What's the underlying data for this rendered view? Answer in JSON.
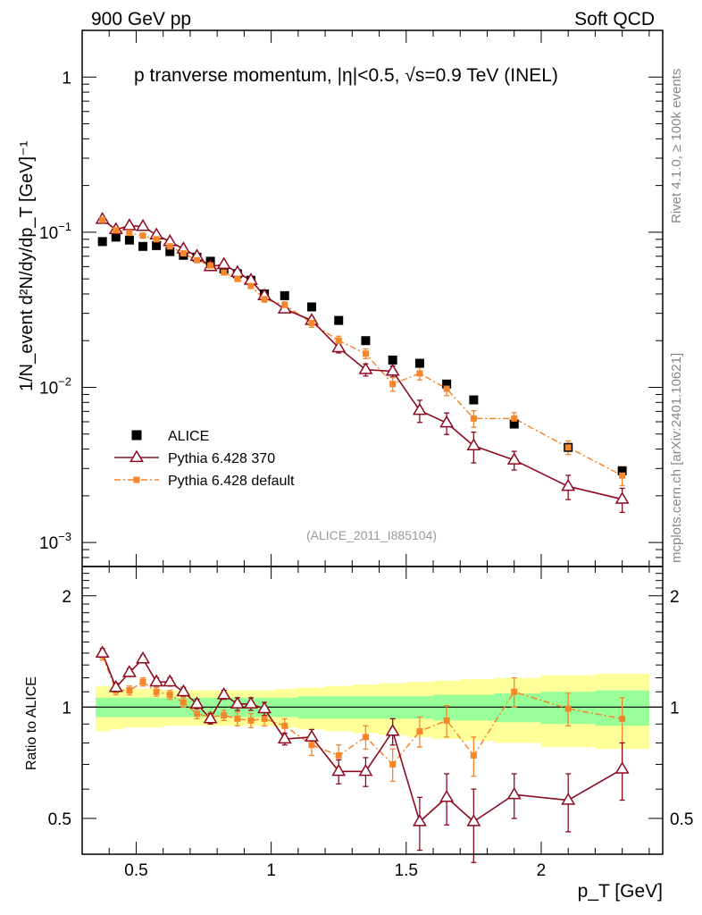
{
  "header": {
    "left": "900 GeV pp",
    "right": "Soft QCD"
  },
  "side": {
    "rivet": "Rivet 4.1.0, ≥ 100k events",
    "mcplots": "mcplots.cern.ch [arXiv:2401.10621]"
  },
  "colors": {
    "alice": "#000000",
    "p370": "#8b0a1f",
    "pdef": "#f5862c",
    "band_inner": "#99ff99",
    "band_outer": "#ffff99"
  },
  "chart_data": {
    "type": "scatter",
    "title": "p tranverse momentum, |η|<0.5, √s=0.9 TeV (INEL)",
    "analysis_label": "(ALICE_2011_I885104)",
    "ylabel_main": "1/N_event d²N/dy/dp_T [GeV]⁻¹",
    "ylabel_ratio": "Ratio to ALICE",
    "xlabel": "p_T [GeV]",
    "xlim": [
      0.3,
      2.45
    ],
    "ylim_main": [
      0.0007,
      2.0
    ],
    "ylim_ratio": [
      0.4,
      2.4
    ],
    "x_ticks": [
      0.5,
      1,
      1.5,
      2
    ],
    "x_tick_labels": [
      "0.5",
      "1",
      "1.5",
      "2"
    ],
    "y_ticks_main_labels": [
      "1",
      "10⁻¹",
      "10⁻²",
      "10⁻³"
    ],
    "y_ticks_ratio": [
      0.5,
      1,
      2
    ],
    "y_ticks_ratio_labels": [
      "0.5",
      "1",
      "2"
    ],
    "x": [
      0.375,
      0.425,
      0.475,
      0.525,
      0.575,
      0.625,
      0.675,
      0.725,
      0.775,
      0.825,
      0.875,
      0.925,
      0.975,
      1.05,
      1.15,
      1.25,
      1.35,
      1.45,
      1.55,
      1.65,
      1.75,
      1.9,
      2.1,
      2.3
    ],
    "series": [
      {
        "name": "ALICE",
        "marker": "square",
        "values": [
          0.087,
          0.093,
          0.089,
          0.081,
          0.082,
          0.075,
          0.071,
          0.069,
          0.065,
          0.058,
          0.054,
          0.049,
          0.04,
          0.039,
          0.033,
          0.027,
          0.02,
          0.015,
          0.0143,
          0.0105,
          0.0083,
          0.0058,
          0.0041,
          0.0029
        ]
      },
      {
        "name": "Pythia 6.428 370",
        "marker": "open-triangle",
        "values": [
          0.121,
          0.104,
          0.11,
          0.109,
          0.096,
          0.087,
          0.078,
          0.07,
          0.06,
          0.062,
          0.055,
          0.049,
          0.039,
          0.032,
          0.027,
          0.018,
          0.013,
          0.0127,
          0.0071,
          0.0059,
          0.0042,
          0.0034,
          0.0023,
          0.0019
        ],
        "ratio": [
          1.4,
          1.13,
          1.24,
          1.35,
          1.17,
          1.17,
          1.1,
          1.02,
          0.93,
          1.08,
          1.02,
          1.02,
          0.99,
          0.82,
          0.83,
          0.67,
          0.67,
          0.86,
          0.49,
          0.57,
          0.49,
          0.58,
          0.56,
          0.68
        ],
        "ratio_err": [
          0.04,
          0.03,
          0.03,
          0.03,
          0.03,
          0.03,
          0.03,
          0.03,
          0.03,
          0.03,
          0.04,
          0.04,
          0.04,
          0.03,
          0.04,
          0.05,
          0.06,
          0.07,
          0.08,
          0.09,
          0.11,
          0.08,
          0.1,
          0.12
        ]
      },
      {
        "name": "Pythia 6.428 default",
        "marker": "filled-square-small",
        "values": [
          0.12,
          0.103,
          0.099,
          0.095,
          0.09,
          0.081,
          0.073,
          0.066,
          0.061,
          0.055,
          0.05,
          0.045,
          0.037,
          0.034,
          0.026,
          0.02,
          0.0165,
          0.0105,
          0.0123,
          0.0098,
          0.0063,
          0.0063,
          0.0041,
          0.0027
        ],
        "ratio": [
          1.38,
          1.11,
          1.11,
          1.17,
          1.1,
          1.08,
          1.03,
          0.96,
          0.94,
          0.95,
          0.93,
          0.92,
          0.93,
          0.89,
          0.79,
          0.74,
          0.83,
          0.7,
          0.86,
          0.92,
          0.74,
          1.1,
          0.99,
          0.93
        ],
        "ratio_err": [
          0.04,
          0.03,
          0.03,
          0.03,
          0.03,
          0.03,
          0.03,
          0.03,
          0.03,
          0.03,
          0.04,
          0.04,
          0.04,
          0.04,
          0.05,
          0.05,
          0.06,
          0.07,
          0.08,
          0.09,
          0.09,
          0.1,
          0.1,
          0.13
        ]
      }
    ],
    "band_inner_halfwidth": [
      0.06,
      0.06,
      0.06,
      0.06,
      0.06,
      0.06,
      0.06,
      0.06,
      0.06,
      0.06,
      0.06,
      0.06,
      0.06,
      0.06,
      0.07,
      0.07,
      0.07,
      0.07,
      0.07,
      0.08,
      0.08,
      0.09,
      0.1,
      0.11
    ],
    "band_outer_halfwidth": [
      0.14,
      0.13,
      0.12,
      0.12,
      0.12,
      0.11,
      0.11,
      0.11,
      0.11,
      0.11,
      0.11,
      0.11,
      0.11,
      0.12,
      0.13,
      0.14,
      0.15,
      0.16,
      0.17,
      0.18,
      0.19,
      0.2,
      0.22,
      0.23
    ],
    "legend": [
      "ALICE",
      "Pythia 6.428 370",
      "Pythia 6.428 default"
    ],
    "legend_position": "bottom-left"
  }
}
